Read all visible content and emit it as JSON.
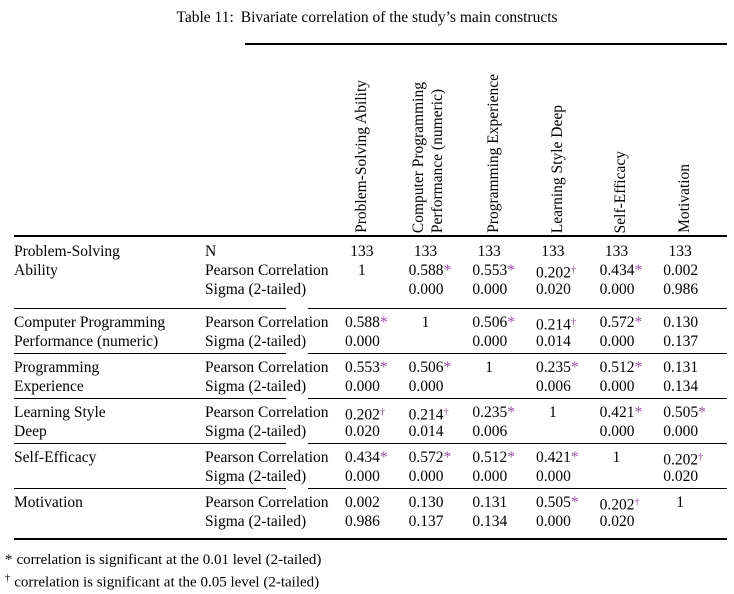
{
  "title": {
    "label": "Table 11:",
    "text": "Bivariate correlation of the study’s main constructs"
  },
  "colors": {
    "background": "#ffffff",
    "text": "#000000",
    "rule": "#000000",
    "significance_marker": "#9852A2"
  },
  "table": {
    "column_headers": [
      "Problem-Solving Ability",
      "Computer Programming\nPerformance (numeric)",
      "Programming Experience",
      "Learning Style Deep",
      "Self-Efficacy",
      "Motivation"
    ],
    "groups": [
      {
        "construct": "Problem-Solving\nAbility",
        "stats": [
          "N",
          "Pearson Correlation",
          "Sigma (2-tailed)"
        ],
        "values": [
          [
            "133",
            "1",
            ""
          ],
          [
            "133",
            "0.588*",
            "0.000"
          ],
          [
            "133",
            "0.553*",
            "0.000"
          ],
          [
            "133",
            "0.202†",
            "0.020"
          ],
          [
            "133",
            "0.434*",
            "0.000"
          ],
          [
            "133",
            "0.002",
            "0.986"
          ]
        ]
      },
      {
        "construct": "Computer Programming\nPerformance (numeric)",
        "stats": [
          "Pearson Correlation",
          "Sigma (2-tailed)"
        ],
        "values": [
          [
            "0.588*",
            "0.000"
          ],
          [
            "1",
            ""
          ],
          [
            "0.506*",
            "0.000"
          ],
          [
            "0.214†",
            "0.014"
          ],
          [
            "0.572*",
            "0.000"
          ],
          [
            "0.130",
            "0.137"
          ]
        ]
      },
      {
        "construct": "Programming\nExperience",
        "stats": [
          "Pearson Correlation",
          "Sigma (2-tailed)"
        ],
        "values": [
          [
            "0.553*",
            "0.000"
          ],
          [
            "0.506*",
            "0.000"
          ],
          [
            "1",
            ""
          ],
          [
            "0.235*",
            "0.006"
          ],
          [
            "0.512*",
            "0.000"
          ],
          [
            "0.131",
            "0.134"
          ]
        ]
      },
      {
        "construct": "Learning Style\nDeep",
        "stats": [
          "Pearson Correlation",
          "Sigma (2-tailed)"
        ],
        "values": [
          [
            "0.202†",
            "0.020"
          ],
          [
            "0.214†",
            "0.014"
          ],
          [
            "0.235*",
            "0.006"
          ],
          [
            "1",
            ""
          ],
          [
            "0.421*",
            "0.000"
          ],
          [
            "0.505*",
            "0.000"
          ]
        ]
      },
      {
        "construct": "Self-Efficacy",
        "stats": [
          "Pearson Correlation",
          "Sigma (2-tailed)"
        ],
        "values": [
          [
            "0.434*",
            "0.000"
          ],
          [
            "0.572*",
            "0.000"
          ],
          [
            "0.512*",
            "0.000"
          ],
          [
            "0.421*",
            "0.000"
          ],
          [
            "1",
            ""
          ],
          [
            "0.202†",
            "0.020"
          ]
        ]
      },
      {
        "construct": "Motivation",
        "stats": [
          "Pearson Correlation",
          "Sigma (2-tailed)"
        ],
        "values": [
          [
            "0.002",
            "0.986"
          ],
          [
            "0.130",
            "0.137"
          ],
          [
            "0.131",
            "0.134"
          ],
          [
            "0.505*",
            "0.000"
          ],
          [
            "0.202†",
            "0.020"
          ],
          [
            "1",
            ""
          ]
        ]
      }
    ]
  },
  "footnotes": [
    {
      "marker": "*",
      "text": "correlation is significant at the 0.01 level (2-tailed)"
    },
    {
      "marker": "†",
      "text": "correlation is significant at the 0.05 level (2-tailed)"
    }
  ]
}
